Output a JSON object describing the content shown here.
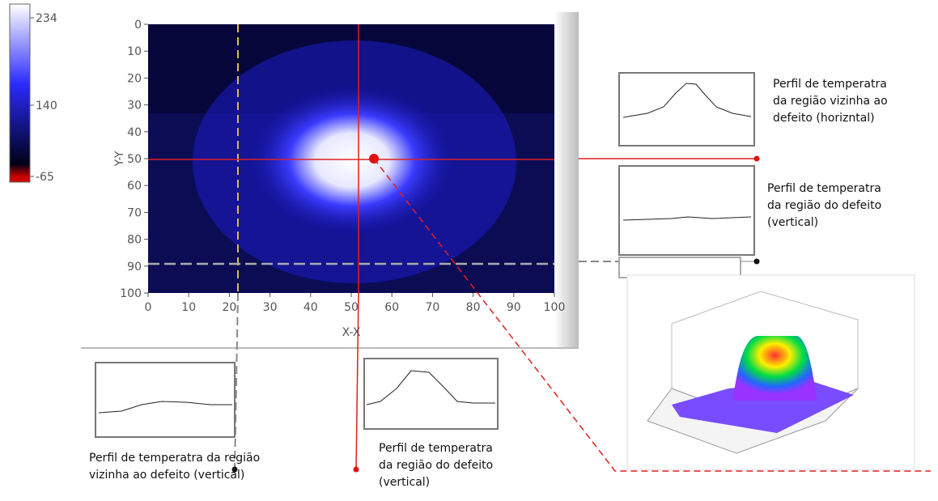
{
  "colorbar": {
    "labels": [
      234,
      140,
      -65
    ]
  },
  "heatmap": {
    "xlabel": "X-X",
    "ylabel": "Y-Y",
    "xticks": [
      0,
      10,
      20,
      30,
      40,
      50,
      60,
      70,
      80,
      90,
      100
    ],
    "yticks": [
      0,
      10,
      20,
      30,
      40,
      50,
      60,
      70,
      80,
      90,
      100
    ]
  },
  "callouts": [
    {
      "lines": [
        "Perfil de temperatra",
        "da região vizinha ao",
        "defeito (horizntal)"
      ]
    },
    {
      "lines": [
        "Perfil de temperatra",
        "da região do defeito",
        "(vertical)"
      ]
    },
    {
      "lines": [
        "Perfil de temperatra da região",
        "vizinha ao defeito (vertical)"
      ]
    },
    {
      "lines": [
        "Perfil de temperatra",
        "da região do defeito",
        "(vertical)"
      ]
    }
  ]
}
